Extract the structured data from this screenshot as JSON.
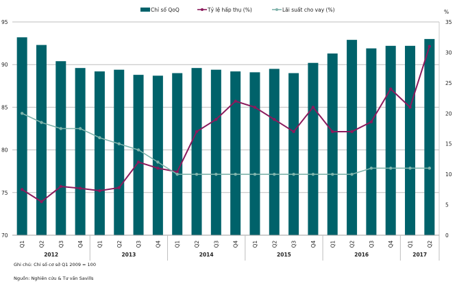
{
  "chart_data": {
    "type": "bar",
    "title": "",
    "categories": [
      "Q1",
      "Q2",
      "Q3",
      "Q4",
      "Q1",
      "Q2",
      "Q3",
      "Q4",
      "Q1",
      "Q2",
      "Q3",
      "Q4",
      "Q1",
      "Q2",
      "Q3",
      "Q4",
      "Q1",
      "Q2",
      "Q3",
      "Q4",
      "Q1",
      "Q2"
    ],
    "year_groups": [
      {
        "label": "2012",
        "count": 4
      },
      {
        "label": "2013",
        "count": 4
      },
      {
        "label": "2014",
        "count": 4
      },
      {
        "label": "2015",
        "count": 4
      },
      {
        "label": "2016",
        "count": 4
      },
      {
        "label": "2017",
        "count": 2
      }
    ],
    "series": [
      {
        "name": "Chỉ số QoQ",
        "type": "bar",
        "axis": "left",
        "color": "#00626a",
        "values": [
          93.2,
          92.3,
          90.4,
          89.6,
          89.2,
          89.4,
          88.8,
          88.7,
          89.0,
          89.6,
          89.4,
          89.2,
          89.1,
          89.5,
          89.0,
          90.2,
          91.3,
          92.9,
          91.9,
          92.2,
          92.2,
          93.0
        ]
      },
      {
        "name": "Tỷ lệ hấp thụ (%)",
        "type": "line",
        "axis": "right",
        "color": "#8b1a5c",
        "values": [
          7.5,
          5.5,
          8.0,
          7.7,
          7.3,
          7.8,
          12.0,
          11.0,
          10.4,
          17.0,
          19.0,
          22.0,
          21.0,
          19.0,
          17.0,
          21.0,
          17.0,
          17.0,
          18.6,
          24.0,
          21.0,
          31.0
        ]
      },
      {
        "name": "Lãi suất cho vay (%)",
        "type": "line",
        "axis": "right",
        "color": "#7fb3ab",
        "values": [
          20.0,
          18.5,
          17.5,
          17.5,
          16.0,
          15.0,
          14.0,
          12.0,
          10.0,
          10.0,
          10.0,
          10.0,
          10.0,
          10.0,
          10.0,
          10.0,
          10.0,
          10.0,
          11.0,
          11.0,
          11.0,
          11.0
        ]
      }
    ],
    "left_axis": {
      "min": 70,
      "max": 95,
      "ticks": [
        70,
        75,
        80,
        85,
        90,
        95
      ],
      "label": ""
    },
    "right_axis": {
      "min": 0,
      "max": 35,
      "ticks": [
        0,
        5,
        10,
        15,
        20,
        25,
        30,
        35
      ],
      "label": "%"
    },
    "grid": true,
    "legend_position": "top-center",
    "xlabel": "",
    "ylabel": ""
  },
  "notes": {
    "note": "Ghi chú: Chỉ số cơ sở Q1 2009 = 100",
    "source": "Nguồn: Nghiên cứu & Tư vấn Savills"
  }
}
